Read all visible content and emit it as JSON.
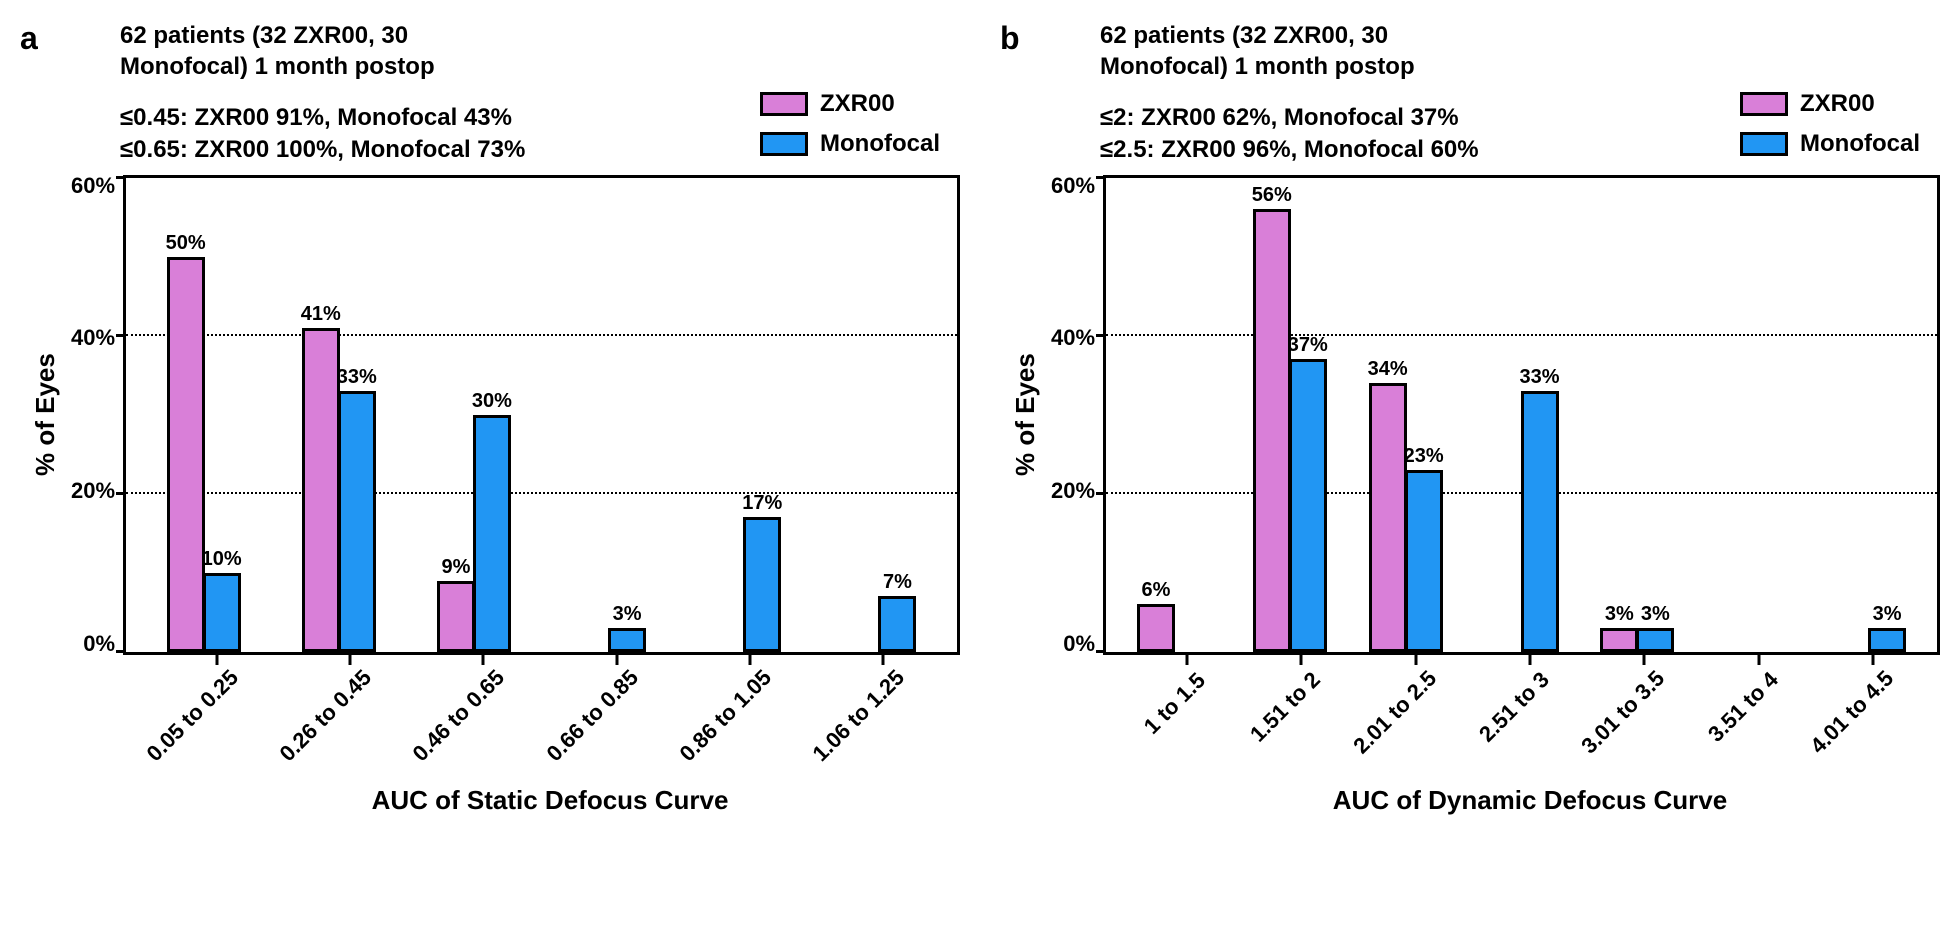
{
  "colors": {
    "zxr": "#d97fd8",
    "monofocal": "#2196f3",
    "border": "#000000",
    "background": "#ffffff"
  },
  "legend": {
    "items": [
      {
        "label": "ZXR00",
        "color_key": "zxr"
      },
      {
        "label": "Monofocal",
        "color_key": "monofocal"
      }
    ]
  },
  "fontsize": {
    "panel_label": 32,
    "header": 24,
    "axis_label": 26,
    "tick": 22,
    "bar_label": 20,
    "legend": 24
  },
  "ymax": 60,
  "ytick_step": 20,
  "panels": [
    {
      "id": "a",
      "panel_label": "a",
      "header_lines": [
        "62 patients (32 ZXR00, 30",
        "Monofocal)  1 month postop"
      ],
      "stats_lines": [
        "≤0.45: ZXR00 91%, Monofocal 43%",
        "≤0.65: ZXR00 100%, Monofocal 73%"
      ],
      "ylabel": "% of Eyes",
      "xlabel": "AUC of Static Defocus Curve",
      "categories": [
        "0.05 to 0.25",
        "0.26 to 0.45",
        "0.46 to 0.65",
        "0.66 to 0.85",
        "0.86 to 1.05",
        "1.06 to 1.25"
      ],
      "series": [
        {
          "name": "ZXR00",
          "color_key": "zxr",
          "values": [
            50,
            41,
            9,
            null,
            null,
            null
          ],
          "labels": [
            "50%",
            "41%",
            "9%",
            "",
            "",
            ""
          ]
        },
        {
          "name": "Monofocal",
          "color_key": "monofocal",
          "values": [
            10,
            33,
            30,
            3,
            17,
            7
          ],
          "labels": [
            "10%",
            "33%",
            "30%",
            "3%",
            "17%",
            "7%"
          ]
        }
      ]
    },
    {
      "id": "b",
      "panel_label": "b",
      "header_lines": [
        "62 patients (32 ZXR00, 30",
        "Monofocal)  1 month postop"
      ],
      "stats_lines": [
        "≤2: ZXR00 62%, Monofocal 37%",
        "≤2.5: ZXR00 96%, Monofocal 60%"
      ],
      "ylabel": "% of Eyes",
      "xlabel": "AUC of Dynamic Defocus Curve",
      "categories": [
        "1 to 1.5",
        "1.51 to 2",
        "2.01 to 2.5",
        "2.51 to 3",
        "3.01 to 3.5",
        "3.51 to 4",
        "4.01 to 4.5"
      ],
      "series": [
        {
          "name": "ZXR00",
          "color_key": "zxr",
          "values": [
            6,
            56,
            34,
            null,
            3,
            null,
            null
          ],
          "labels": [
            "6%",
            "56%",
            "34%",
            "",
            "3%",
            "",
            ""
          ]
        },
        {
          "name": "Monofocal",
          "color_key": "monofocal",
          "values": [
            null,
            37,
            23,
            33,
            3,
            null,
            3
          ],
          "labels": [
            "",
            "37%",
            "23%",
            "33%",
            "3%",
            "",
            "3%"
          ]
        }
      ]
    }
  ],
  "yticks": [
    "60%",
    "40%",
    "20%",
    "0%"
  ]
}
